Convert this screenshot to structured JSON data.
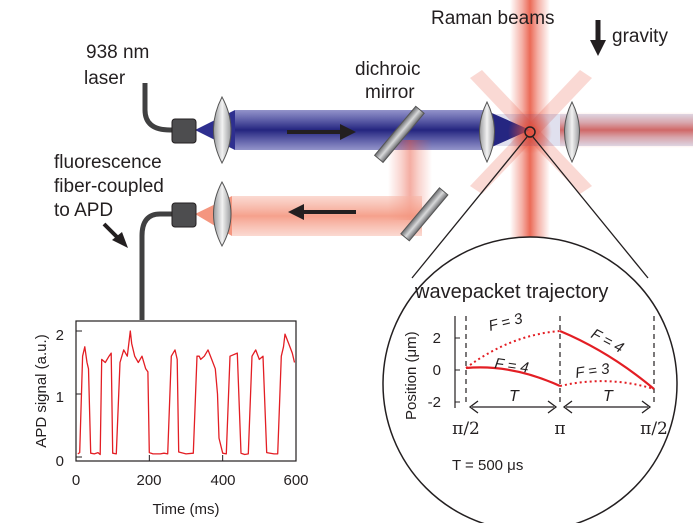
{
  "labels": {
    "laser_line1": "938 nm",
    "laser_line2": "laser",
    "raman": "Raman beams",
    "gravity": "gravity",
    "dichroic_line1": "dichroic",
    "dichroic_line2": "mirror",
    "fluor_line1": "fluorescence",
    "fluor_line2": "fiber-coupled",
    "fluor_line3": "to APD"
  },
  "colors": {
    "laser_beam": "#2e2f8f",
    "raman_beam": "#e8503a",
    "fluorescence_beam": "#f7b3a3",
    "trace": "#e31e24",
    "arrow": "#231f20"
  },
  "apd_plot": {
    "ylabel": "APD signal (a.u.)",
    "xlabel": "Time (ms)",
    "x_ticks": [
      "0",
      "200",
      "400",
      "600"
    ],
    "y_ticks": [
      "0",
      "1",
      "2"
    ]
  },
  "inset": {
    "title": "wavepacket trajectory",
    "ylabel": "Position (μm)",
    "y_ticks": [
      "2",
      "0",
      "-2"
    ],
    "phase_labels": [
      "π/2",
      "π",
      "π/2"
    ],
    "curve_labels": {
      "f3_left": "F = 3",
      "f4_left": "F = 4",
      "f4_right": "F = 4",
      "f3_right": "F = 3"
    },
    "interval_label": "T",
    "duration": "T = 500 μs"
  },
  "chart_data": {
    "type": "line",
    "xlabel": "Time (ms)",
    "ylabel": "APD signal (a.u.)",
    "xlim": [
      0,
      600
    ],
    "ylim": [
      0,
      2
    ],
    "series": [
      {
        "x": [
          5,
          10,
          18,
          24,
          30,
          34,
          40,
          50,
          60,
          66,
          70,
          80,
          90,
          96,
          100,
          110,
          120,
          130,
          140,
          148,
          152,
          160,
          170,
          180,
          190,
          196,
          200,
          210,
          230,
          240,
          250,
          260,
          270,
          276,
          280,
          300,
          320,
          330,
          336,
          340,
          350,
          360,
          370,
          380,
          386,
          390,
          400,
          410,
          420,
          440,
          450,
          460,
          470,
          480,
          490,
          500,
          510,
          520,
          540,
          550,
          560,
          566,
          570,
          580,
          590,
          596
        ],
        "y": [
          0.05,
          0.07,
          1.6,
          1.75,
          1.5,
          1.4,
          0.06,
          0.05,
          0.07,
          0.04,
          1.55,
          1.5,
          1.6,
          1.65,
          0.06,
          0.05,
          1.5,
          1.7,
          1.6,
          2.0,
          1.8,
          1.6,
          1.5,
          1.6,
          1.4,
          1.35,
          0.07,
          0.05,
          0.05,
          0.06,
          0.05,
          1.6,
          1.7,
          1.55,
          0.08,
          0.05,
          0.06,
          1.6,
          1.6,
          1.55,
          1.6,
          1.7,
          1.55,
          1.4,
          1.0,
          0.3,
          0.06,
          0.05,
          1.6,
          1.65,
          0.06,
          0.04,
          0.05,
          1.6,
          1.7,
          1.55,
          1.6,
          0.07,
          0.05,
          0.05,
          1.6,
          1.75,
          1.95,
          1.8,
          1.65,
          1.5
        ]
      }
    ]
  }
}
